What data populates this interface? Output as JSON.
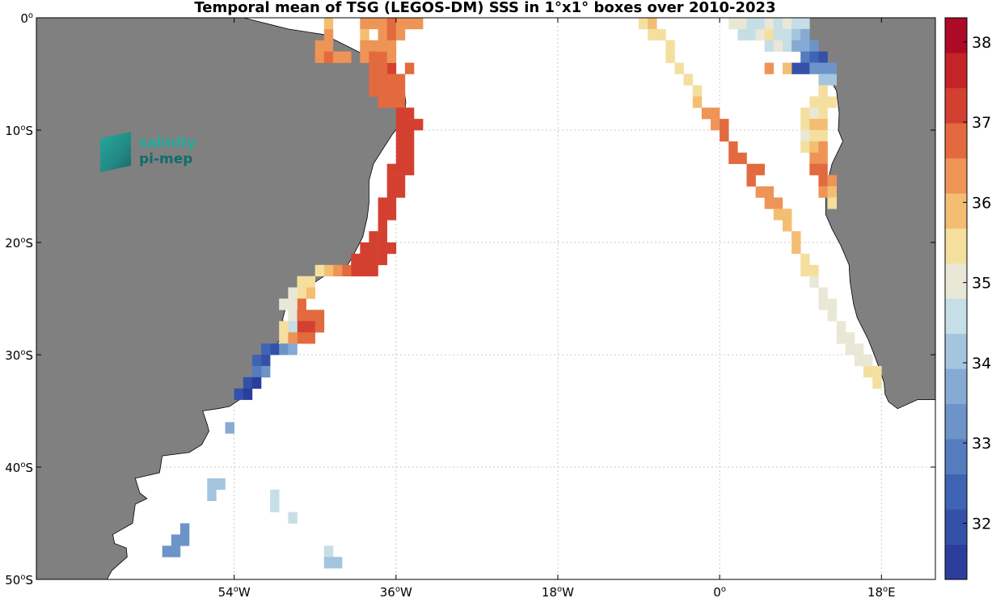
{
  "title": "Temporal mean of TSG (LEGOS-DM) SSS in 1°x1° boxes over 2010-2023",
  "logo": {
    "line1": "salinity",
    "line2": "pi-mep"
  },
  "map": {
    "lon_range": [
      -76,
      24
    ],
    "lat_range": [
      -50,
      0
    ],
    "land_color": "#808080",
    "ocean_color": "#ffffff",
    "x_ticks": [
      {
        "lon": -54,
        "num": "54",
        "hemi": "W"
      },
      {
        "lon": -36,
        "num": "36",
        "hemi": "W"
      },
      {
        "lon": -18,
        "num": "18",
        "hemi": "W"
      },
      {
        "lon": 0,
        "num": "0",
        "hemi": ""
      },
      {
        "lon": 18,
        "num": "18",
        "hemi": "E"
      }
    ],
    "y_ticks": [
      {
        "lat": 0,
        "num": "0",
        "hemi": ""
      },
      {
        "lat": -10,
        "num": "10",
        "hemi": "S"
      },
      {
        "lat": -20,
        "num": "20",
        "hemi": "S"
      },
      {
        "lat": -30,
        "num": "30",
        "hemi": "S"
      },
      {
        "lat": -40,
        "num": "40",
        "hemi": "S"
      },
      {
        "lat": -50,
        "num": "50",
        "hemi": "S"
      }
    ],
    "degree_symbol": "o"
  },
  "colorbar": {
    "min": 31.3,
    "max": 38.3,
    "ticks": [
      "32",
      "33",
      "34",
      "35",
      "36",
      "37",
      "38"
    ],
    "colors": [
      "#2b3e9c",
      "#3450a8",
      "#4064b4",
      "#557cbe",
      "#6c94c8",
      "#86aad4",
      "#a3c5de",
      "#c6dee5",
      "#e9e7d6",
      "#f4df9e",
      "#f4be72",
      "#ee9456",
      "#e36a3e",
      "#d44030",
      "#c42328",
      "#ac0a26"
    ]
  },
  "chart_data": {
    "type": "heatmap",
    "variable": "SSS",
    "boxes": [
      [
        -40,
        -1,
        36.2
      ],
      [
        -39,
        -1,
        36.2
      ],
      [
        -40,
        -2,
        36.0
      ],
      [
        -40,
        -3,
        36.4
      ],
      [
        -39,
        -3,
        36.4
      ],
      [
        -40,
        -4,
        36.4
      ],
      [
        -39,
        -4,
        36.6
      ],
      [
        -38,
        -4,
        36.6
      ],
      [
        -37,
        -5,
        37.0
      ],
      [
        -38,
        -6,
        36.6
      ],
      [
        -37,
        -6,
        36.6
      ],
      [
        -37,
        -7,
        36.6
      ],
      [
        -37,
        -8,
        36.8
      ],
      [
        -36,
        -8,
        36.8
      ],
      [
        -36,
        -9,
        37.0
      ],
      [
        -35,
        -9,
        37.0
      ],
      [
        -36,
        -10,
        37.0
      ],
      [
        -35,
        -10,
        37.0
      ],
      [
        -34,
        -10,
        37.0
      ],
      [
        -36,
        -11,
        37.0
      ],
      [
        -35,
        -11,
        37.0
      ],
      [
        -36,
        -12,
        37.0
      ],
      [
        -35,
        -12,
        37.0
      ],
      [
        -36,
        -13,
        37.0
      ],
      [
        -35,
        -13,
        37.0
      ],
      [
        -36,
        -14,
        37.2
      ],
      [
        -35,
        -14,
        37.2
      ],
      [
        -37,
        -14,
        37.2
      ],
      [
        -37,
        -15,
        37.2
      ],
      [
        -36,
        -15,
        37.2
      ],
      [
        -37,
        -16,
        37.2
      ],
      [
        -36,
        -16,
        37.2
      ],
      [
        -37,
        -17,
        37.2
      ],
      [
        -38,
        -17,
        37.2
      ],
      [
        -38,
        -18,
        37.2
      ],
      [
        -37,
        -18,
        37.2
      ],
      [
        -38,
        -19,
        37.2
      ],
      [
        -39,
        -20,
        37.2
      ],
      [
        -38,
        -20,
        37.2
      ],
      [
        -40,
        -21,
        37.2
      ],
      [
        -39,
        -21,
        37.2
      ],
      [
        -38,
        -21,
        37.0
      ],
      [
        -37,
        -21,
        37.2
      ],
      [
        -40,
        -22,
        37.2
      ],
      [
        -39,
        -22,
        37.2
      ],
      [
        -38,
        -22,
        37.2
      ],
      [
        -41,
        -22,
        37.0
      ],
      [
        -41,
        -23,
        37.0
      ],
      [
        -40,
        -23,
        37.2
      ],
      [
        -39,
        -23,
        37.2
      ],
      [
        -42,
        -23,
        36.6
      ],
      [
        -43,
        -23,
        36.2
      ],
      [
        -44,
        -23,
        36.0
      ],
      [
        -45,
        -23,
        35.6
      ],
      [
        -46,
        -24,
        35.4
      ],
      [
        -47,
        -24,
        35.6
      ],
      [
        -46,
        -25,
        35.8
      ],
      [
        -47,
        -25,
        35.4
      ],
      [
        -48,
        -25,
        35.2
      ],
      [
        -47,
        -26,
        36.6
      ],
      [
        -48,
        -26,
        35.2
      ],
      [
        -49,
        -26,
        35.2
      ],
      [
        -48,
        -27,
        35.0
      ],
      [
        -47,
        -27,
        36.8
      ],
      [
        -46,
        -27,
        36.8
      ],
      [
        -45,
        -27,
        36.8
      ],
      [
        -47,
        -28,
        37.0
      ],
      [
        -46,
        -28,
        37.0
      ],
      [
        -45,
        -28,
        36.8
      ],
      [
        -48,
        -28,
        34.6
      ],
      [
        -49,
        -28,
        35.6
      ],
      [
        -47,
        -29,
        36.6
      ],
      [
        -46,
        -29,
        36.8
      ],
      [
        -49,
        -29,
        35.4
      ],
      [
        -48,
        -29,
        36.4
      ],
      [
        -50,
        -30,
        32.0
      ],
      [
        -51,
        -30,
        32.2
      ],
      [
        -49,
        -30,
        33.2
      ],
      [
        -48,
        -30,
        33.6
      ],
      [
        -51,
        -31,
        32.0
      ],
      [
        -52,
        -31,
        32.2
      ],
      [
        -51,
        -32,
        33.2
      ],
      [
        -52,
        -32,
        33.0
      ],
      [
        -53,
        -33,
        31.8
      ],
      [
        -52,
        -33,
        31.6
      ],
      [
        -54,
        -34,
        31.8
      ],
      [
        -53,
        -34,
        31.6
      ],
      [
        -55,
        -37,
        33.6
      ],
      [
        -57,
        -42,
        34.0
      ],
      [
        -56,
        -42,
        34.0
      ],
      [
        -57,
        -43,
        34.2
      ],
      [
        -50,
        -43,
        34.8
      ],
      [
        -50,
        -44,
        34.8
      ],
      [
        -48,
        -45,
        34.8
      ],
      [
        -60,
        -46,
        33.4
      ],
      [
        -61,
        -47,
        33.4
      ],
      [
        -60,
        -47,
        33.4
      ],
      [
        -62,
        -48,
        33.4
      ],
      [
        -61,
        -48,
        33.4
      ],
      [
        -44,
        -48,
        34.8
      ],
      [
        -44,
        -49,
        34.0
      ],
      [
        -43,
        -49,
        34.0
      ],
      [
        -38,
        -1,
        36.4
      ],
      [
        -37,
        -1,
        36.6
      ],
      [
        -36,
        -1,
        36.2
      ],
      [
        -38,
        -2,
        36.4
      ],
      [
        -37,
        -2,
        36.6
      ],
      [
        -36,
        -2,
        36.4
      ],
      [
        -35,
        -1,
        36.4
      ],
      [
        -34,
        -1,
        36.2
      ],
      [
        -39,
        -5,
        36.6
      ],
      [
        -38,
        -5,
        36.6
      ],
      [
        -39,
        -6,
        36.6
      ],
      [
        -39,
        -7,
        36.6
      ],
      [
        -38,
        -7,
        36.6
      ],
      [
        -38,
        -8,
        36.6
      ],
      [
        -36,
        -6,
        36.6
      ],
      [
        -36,
        -7,
        36.6
      ],
      [
        -38,
        -3,
        36.4
      ],
      [
        -37,
        -3,
        36.4
      ],
      [
        -37,
        -4,
        36.4
      ],
      [
        -35,
        -5,
        36.8
      ],
      [
        -44,
        -2,
        36.2
      ],
      [
        -44,
        -1,
        36.0
      ],
      [
        -45,
        -3,
        36.4
      ],
      [
        -44,
        -3,
        36.4
      ],
      [
        -45,
        -4,
        36.4
      ],
      [
        -44,
        -4,
        36.6
      ],
      [
        -43,
        -4,
        36.4
      ],
      [
        -42,
        -4,
        36.4
      ],
      [
        -9,
        -1,
        35.6
      ],
      [
        -8,
        -1,
        35.8
      ],
      [
        -8,
        -2,
        35.6
      ],
      [
        -7,
        -2,
        35.6
      ],
      [
        -6,
        -3,
        35.6
      ],
      [
        -6,
        -4,
        35.6
      ],
      [
        -5,
        -5,
        35.6
      ],
      [
        -4,
        -6,
        35.6
      ],
      [
        -3,
        -7,
        35.6
      ],
      [
        -3,
        -8,
        35.8
      ],
      [
        -2,
        -9,
        36.2
      ],
      [
        -1,
        -9,
        36.2
      ],
      [
        -1,
        -10,
        36.2
      ],
      [
        0,
        -10,
        36.6
      ],
      [
        0,
        -11,
        36.6
      ],
      [
        1,
        -12,
        36.8
      ],
      [
        1,
        -13,
        36.8
      ],
      [
        2,
        -13,
        36.6
      ],
      [
        3,
        -14,
        36.6
      ],
      [
        4,
        -14,
        36.6
      ],
      [
        3,
        -15,
        36.6
      ],
      [
        4,
        -16,
        36.4
      ],
      [
        5,
        -16,
        36.4
      ],
      [
        5,
        -17,
        36.2
      ],
      [
        6,
        -17,
        36.2
      ],
      [
        6,
        -18,
        36.0
      ],
      [
        7,
        -18,
        36.0
      ],
      [
        7,
        -19,
        35.8
      ],
      [
        8,
        -20,
        35.8
      ],
      [
        8,
        -21,
        35.8
      ],
      [
        9,
        -22,
        35.6
      ],
      [
        9,
        -23,
        35.6
      ],
      [
        10,
        -23,
        35.6
      ],
      [
        10,
        -24,
        35.2
      ],
      [
        11,
        -25,
        35.2
      ],
      [
        11,
        -26,
        35.2
      ],
      [
        12,
        -26,
        35.2
      ],
      [
        12,
        -27,
        35.2
      ],
      [
        13,
        -28,
        35.2
      ],
      [
        13,
        -29,
        35.2
      ],
      [
        14,
        -29,
        35.2
      ],
      [
        14,
        -30,
        35.2
      ],
      [
        15,
        -30,
        35.2
      ],
      [
        15,
        -31,
        35.2
      ],
      [
        16,
        -31,
        35.2
      ],
      [
        16,
        -32,
        35.4
      ],
      [
        17,
        -32,
        35.4
      ],
      [
        17,
        -33,
        35.4
      ],
      [
        1,
        -1,
        35.2
      ],
      [
        2,
        -1,
        35.2
      ],
      [
        3,
        -1,
        34.8
      ],
      [
        4,
        -1,
        34.4
      ],
      [
        5,
        -1,
        35.0
      ],
      [
        6,
        -1,
        34.8
      ],
      [
        7,
        -1,
        35.0
      ],
      [
        8,
        -1,
        34.6
      ],
      [
        9,
        -1,
        34.8
      ],
      [
        2,
        -2,
        34.6
      ],
      [
        3,
        -2,
        34.8
      ],
      [
        4,
        -2,
        35.2
      ],
      [
        5,
        -2,
        35.4
      ],
      [
        6,
        -2,
        34.6
      ],
      [
        7,
        -2,
        34.6
      ],
      [
        8,
        -2,
        34.2
      ],
      [
        9,
        -2,
        33.8
      ],
      [
        5,
        -3,
        34.8
      ],
      [
        6,
        -3,
        35.2
      ],
      [
        7,
        -3,
        34.8
      ],
      [
        8,
        -3,
        33.6
      ],
      [
        9,
        -3,
        33.6
      ],
      [
        10,
        -3,
        33.4
      ],
      [
        9,
        -4,
        33.0
      ],
      [
        10,
        -4,
        32.2
      ],
      [
        11,
        -4,
        31.8
      ],
      [
        9,
        -5,
        32.0
      ],
      [
        8,
        -5,
        31.8
      ],
      [
        10,
        -5,
        33.2
      ],
      [
        11,
        -5,
        33.2
      ],
      [
        12,
        -5,
        33.2
      ],
      [
        11,
        -6,
        34.0
      ],
      [
        12,
        -6,
        34.2
      ],
      [
        7,
        -5,
        36.0
      ],
      [
        5,
        -5,
        36.4
      ],
      [
        10,
        -8,
        35.4
      ],
      [
        11,
        -7,
        35.6
      ],
      [
        11,
        -8,
        35.4
      ],
      [
        12,
        -8,
        35.4
      ],
      [
        9,
        -9,
        35.4
      ],
      [
        10,
        -9,
        35.2
      ],
      [
        11,
        -9,
        35.6
      ],
      [
        9,
        -10,
        35.4
      ],
      [
        10,
        -10,
        35.8
      ],
      [
        11,
        -10,
        36.0
      ],
      [
        9,
        -11,
        35.2
      ],
      [
        10,
        -11,
        35.4
      ],
      [
        11,
        -11,
        35.6
      ],
      [
        9,
        -12,
        35.6
      ],
      [
        10,
        -12,
        36.0
      ],
      [
        11,
        -12,
        36.4
      ],
      [
        10,
        -13,
        36.4
      ],
      [
        11,
        -13,
        36.4
      ],
      [
        10,
        -14,
        36.6
      ],
      [
        11,
        -14,
        36.6
      ],
      [
        11,
        -15,
        36.6
      ],
      [
        12,
        -15,
        36.4
      ],
      [
        11,
        -16,
        36.4
      ],
      [
        12,
        -16,
        35.8
      ],
      [
        12,
        -17,
        35.6
      ]
    ]
  }
}
